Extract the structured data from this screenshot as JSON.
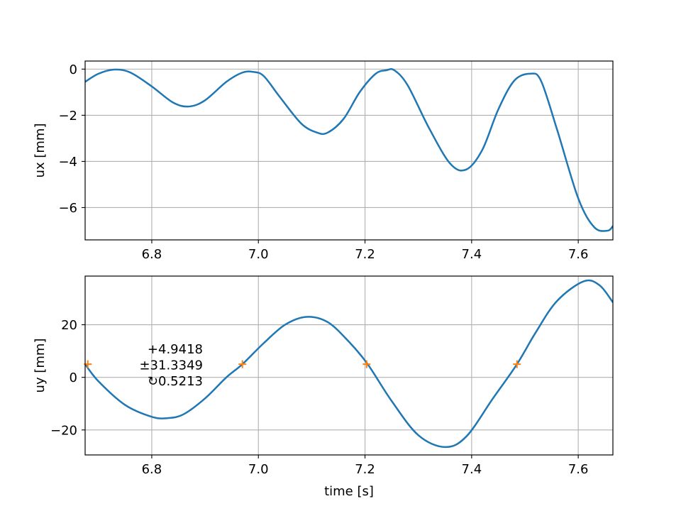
{
  "chart_data": [
    {
      "type": "line",
      "title": "",
      "xlabel": "",
      "ylabel": "ux [mm]",
      "xlim": [
        6.675,
        7.665
      ],
      "ylim": [
        -7.4,
        0.35
      ],
      "xticks": [
        6.8,
        7.0,
        7.2,
        7.4,
        7.6
      ],
      "yticks": [
        -6,
        -4,
        -2,
        0
      ],
      "xtick_labels": [
        "6.8",
        "7.0",
        "7.2",
        "7.4",
        "7.6"
      ],
      "ytick_labels": [
        "−6",
        "−4",
        "−2",
        "0"
      ],
      "grid": true,
      "colors": {
        "line": "#1f77b4"
      },
      "series": [
        {
          "x": [
            6.675,
            6.7,
            6.73,
            6.76,
            6.8,
            6.84,
            6.87,
            6.9,
            6.94,
            6.97,
            6.99,
            7.01,
            7.04,
            7.08,
            7.11,
            7.13,
            7.16,
            7.19,
            7.22,
            7.24,
            7.255,
            7.28,
            7.32,
            7.36,
            7.39,
            7.42,
            7.45,
            7.48,
            7.51,
            7.53,
            7.56,
            7.6,
            7.63,
            7.655,
            7.665
          ],
          "values": [
            -0.55,
            -0.2,
            -0.02,
            -0.15,
            -0.75,
            -1.45,
            -1.62,
            -1.35,
            -0.55,
            -0.15,
            -0.12,
            -0.3,
            -1.2,
            -2.35,
            -2.75,
            -2.75,
            -2.15,
            -1.0,
            -0.2,
            -0.05,
            -0.05,
            -0.7,
            -2.55,
            -4.1,
            -4.35,
            -3.5,
            -1.75,
            -0.5,
            -0.2,
            -0.5,
            -2.6,
            -5.6,
            -6.85,
            -7.0,
            -6.8
          ]
        }
      ]
    },
    {
      "type": "line",
      "title": "",
      "xlabel": "time [s]",
      "ylabel": "uy [mm]",
      "xlim": [
        6.675,
        7.665
      ],
      "ylim": [
        -29.5,
        38.5
      ],
      "xticks": [
        6.8,
        7.0,
        7.2,
        7.4,
        7.6
      ],
      "yticks": [
        -20,
        0,
        20
      ],
      "xtick_labels": [
        "6.8",
        "7.0",
        "7.2",
        "7.4",
        "7.6"
      ],
      "ytick_labels": [
        "−20",
        "0",
        "20"
      ],
      "grid": true,
      "colors": {
        "line": "#1f77b4",
        "markers": "#ff7f0e"
      },
      "series": [
        {
          "x": [
            6.675,
            6.7,
            6.75,
            6.8,
            6.83,
            6.86,
            6.9,
            6.94,
            6.97,
            7.01,
            7.05,
            7.09,
            7.13,
            7.17,
            7.205,
            7.25,
            7.3,
            7.35,
            7.39,
            7.44,
            7.485,
            7.52,
            7.56,
            7.61,
            7.64,
            7.665
          ],
          "values": [
            5.0,
            -1.5,
            -10.5,
            -15.0,
            -15.5,
            -14.0,
            -8.0,
            0.0,
            5.0,
            13.0,
            20.0,
            23.0,
            21.0,
            13.5,
            5.0,
            -9.0,
            -22.0,
            -26.5,
            -22.5,
            -8.0,
            5.0,
            17.0,
            29.0,
            36.5,
            35.0,
            28.5
          ]
        }
      ],
      "markers": {
        "symbol": "+",
        "x": [
          6.68,
          6.97,
          7.203,
          7.485
        ],
        "y": [
          5.0,
          5.0,
          5.0,
          5.0
        ]
      },
      "annotation": [
        "+4.9418",
        "±31.3349",
        "↻0.5213"
      ]
    }
  ]
}
